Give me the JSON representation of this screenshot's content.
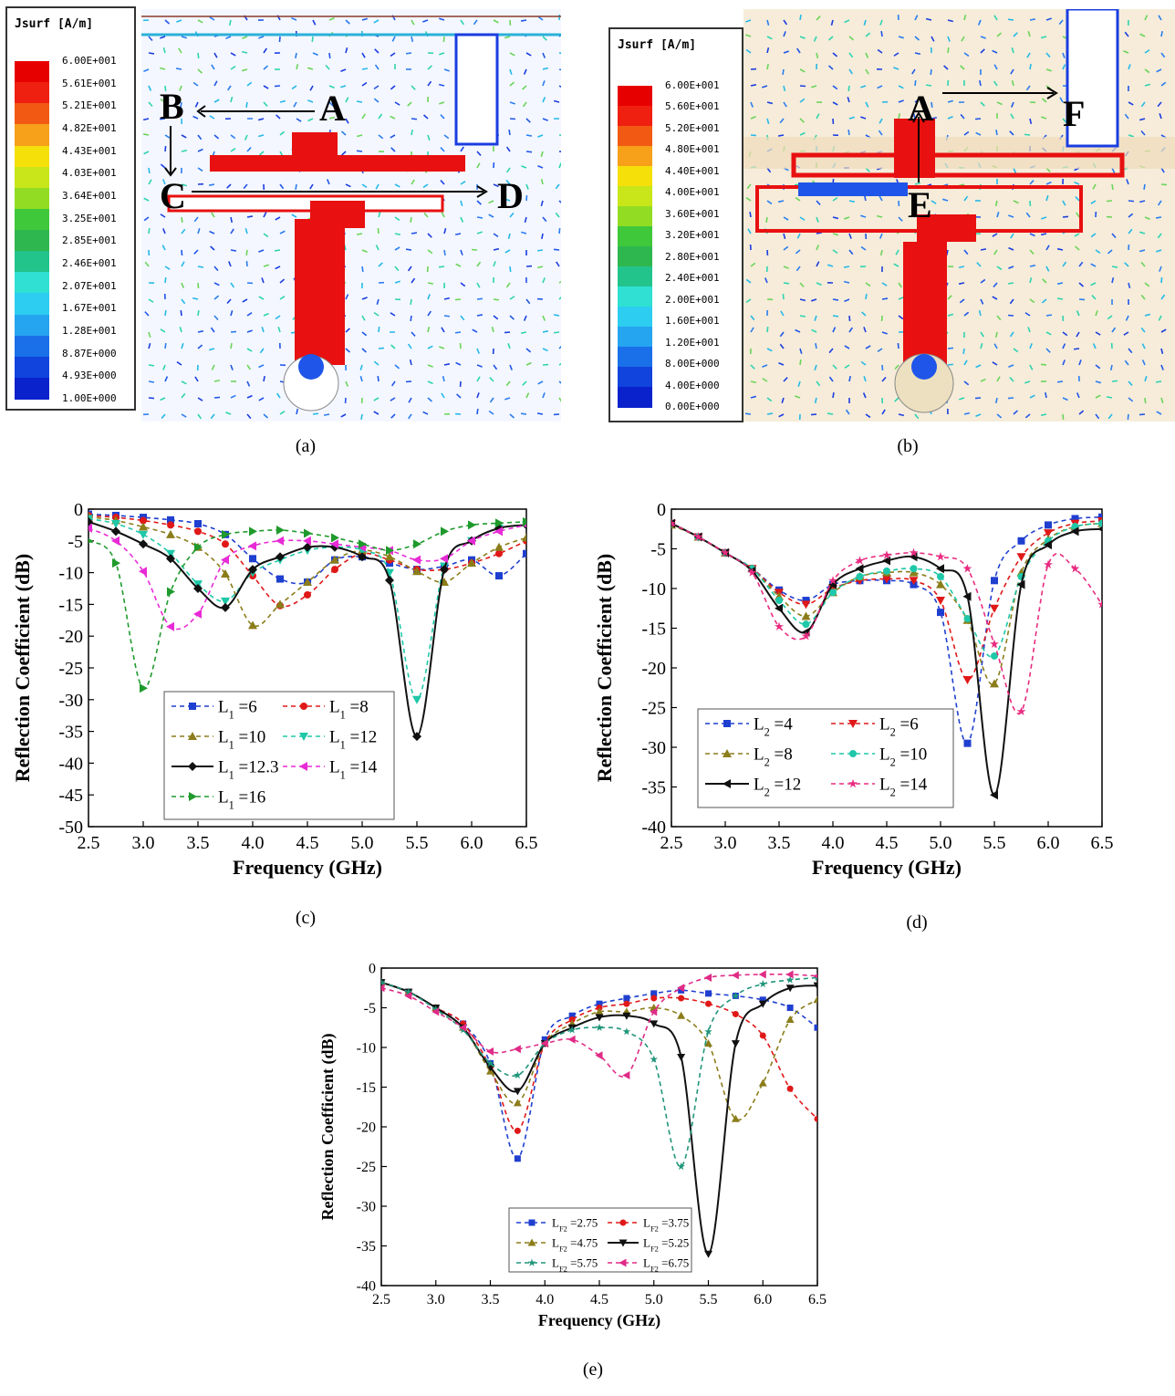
{
  "captions": {
    "a": "(a)",
    "b": "(b)",
    "c": "(c)",
    "d": "(d)",
    "e": "(e)"
  },
  "sim_a": {
    "legend_title": "Jsurf [A/m]",
    "legend_values": [
      "6.00E+001",
      "5.61E+001",
      "5.21E+001",
      "4.82E+001",
      "4.43E+001",
      "4.03E+001",
      "3.64E+001",
      "3.25E+001",
      "2.85E+001",
      "2.46E+001",
      "2.07E+001",
      "1.67E+001",
      "1.28E+001",
      "8.87E+000",
      "4.93E+000",
      "1.00E+000"
    ],
    "point_labels": [
      "A",
      "B",
      "C",
      "D"
    ]
  },
  "sim_b": {
    "legend_title": "Jsurf [A/m]",
    "legend_values": [
      "6.00E+001",
      "5.60E+001",
      "5.20E+001",
      "4.80E+001",
      "4.40E+001",
      "4.00E+001",
      "3.60E+001",
      "3.20E+001",
      "2.80E+001",
      "2.40E+001",
      "2.00E+001",
      "1.60E+001",
      "1.20E+001",
      "8.00E+000",
      "4.00E+000",
      "0.00E+000"
    ],
    "point_labels": [
      "A",
      "E",
      "F"
    ]
  },
  "colorscale": [
    "#e60000",
    "#f02010",
    "#f25a14",
    "#f7a01a",
    "#f5e00a",
    "#c8e619",
    "#92dc24",
    "#3ec83a",
    "#2fb74f",
    "#22c48c",
    "#2fe0d3",
    "#2ccdf0",
    "#25a4f0",
    "#1a70e8",
    "#1144dd",
    "#0a22cc"
  ],
  "chart_data": [
    {
      "type": "line",
      "id": "c",
      "xlabel": "Frequency (GHz)",
      "ylabel": "Reflection Coefficient (dB)",
      "xlim": [
        2.5,
        6.5
      ],
      "ylim": [
        -50,
        0
      ],
      "xticks": [
        "2.5",
        "3.0",
        "3.5",
        "4.0",
        "4.5",
        "5.0",
        "5.5",
        "6.0",
        "6.5"
      ],
      "yticks": [
        "0",
        "-5",
        "-10",
        "-15",
        "-20",
        "-25",
        "-30",
        "-35",
        "-40",
        "-45",
        "-50"
      ],
      "legend_placement": "bottom-center",
      "x": [
        2.5,
        2.75,
        3.0,
        3.25,
        3.5,
        3.75,
        4.0,
        4.25,
        4.5,
        4.75,
        5.0,
        5.25,
        5.5,
        5.75,
        6.0,
        6.25,
        6.5
      ],
      "series": [
        {
          "name_main": "L",
          "name_sub": "1",
          "name_val": "=6",
          "color": "#1f3fd0",
          "dash": "5,4",
          "marker": "square",
          "values": [
            -0.8,
            -1.0,
            -1.3,
            -1.7,
            -2.3,
            -4.0,
            -7.8,
            -11.0,
            -11.5,
            -8.0,
            -7.5,
            -8.5,
            -9.5,
            -9.0,
            -8.0,
            -10.5,
            -7.0
          ]
        },
        {
          "name_main": "L",
          "name_sub": "1",
          "name_val": "=8",
          "color": "#e01818",
          "dash": "5,4",
          "marker": "circle",
          "values": [
            -1.0,
            -1.3,
            -1.8,
            -2.5,
            -3.5,
            -5.5,
            -10.5,
            -15.2,
            -13.5,
            -9.5,
            -7.0,
            -8.0,
            -9.5,
            -9.5,
            -8.5,
            -7.0,
            -5.0
          ]
        },
        {
          "name_main": "L",
          "name_sub": "1",
          "name_val": "=10",
          "color": "#8b7d1a",
          "dash": "5,4",
          "marker": "triangle",
          "values": [
            -1.2,
            -1.8,
            -2.8,
            -4.0,
            -6.0,
            -10.2,
            -18.3,
            -15.0,
            -11.5,
            -8.0,
            -6.5,
            -7.5,
            -9.8,
            -11.5,
            -8.5,
            -6.0,
            -4.5
          ]
        },
        {
          "name_main": "L",
          "name_sub": "1",
          "name_val": "=12",
          "color": "#1ec8a8",
          "dash": "5,4",
          "marker": "triangle-down",
          "values": [
            -1.5,
            -2.3,
            -4.0,
            -7.0,
            -11.8,
            -14.5,
            -10.0,
            -8.0,
            -6.5,
            -6.0,
            -6.5,
            -10.0,
            -30.0,
            -9.0,
            -5.0,
            -3.0,
            -2.5
          ]
        },
        {
          "name_main": "L",
          "name_sub": "1",
          "name_val": "=12.3",
          "color": "#111111",
          "dash": "",
          "marker": "diamond",
          "values": [
            -2.0,
            -3.5,
            -5.5,
            -7.8,
            -12.5,
            -15.5,
            -9.5,
            -7.5,
            -6.0,
            -6.0,
            -7.5,
            -11.2,
            -35.8,
            -9.5,
            -5.0,
            -3.0,
            -2.5
          ]
        },
        {
          "name_main": "L",
          "name_sub": "1",
          "name_val": "=14",
          "color": "#e82bd6",
          "dash": "5,4",
          "marker": "triangle-left",
          "values": [
            -3.0,
            -5.0,
            -9.8,
            -18.5,
            -16.5,
            -8.0,
            -5.8,
            -5.0,
            -5.0,
            -5.5,
            -6.0,
            -6.5,
            -8.0,
            -7.8,
            -5.0,
            -3.5,
            -2.5
          ]
        },
        {
          "name_main": "L",
          "name_sub": "1",
          "name_val": "=16",
          "color": "#1f9a2c",
          "dash": "5,4",
          "marker": "triangle-right",
          "values": [
            -5.0,
            -8.5,
            -28.2,
            -13.0,
            -6.0,
            -4.0,
            -3.5,
            -3.3,
            -3.8,
            -4.5,
            -5.5,
            -6.5,
            -5.5,
            -3.5,
            -2.5,
            -2.2,
            -2.0
          ]
        }
      ]
    },
    {
      "type": "line",
      "id": "d",
      "xlabel": "Frequency (GHz)",
      "ylabel": "Reflection Coefficient (dB)",
      "xlim": [
        2.5,
        6.5
      ],
      "ylim": [
        -40,
        0
      ],
      "xticks": [
        "2.5",
        "3.0",
        "3.5",
        "4.0",
        "4.5",
        "5.0",
        "5.5",
        "6.0",
        "6.5"
      ],
      "yticks": [
        "0",
        "-5",
        "-10",
        "-15",
        "-20",
        "-25",
        "-30",
        "-35",
        "-40"
      ],
      "legend_placement": "bottom-center",
      "x": [
        2.5,
        2.75,
        3.0,
        3.25,
        3.5,
        3.75,
        4.0,
        4.25,
        4.5,
        4.75,
        5.0,
        5.25,
        5.5,
        5.75,
        6.0,
        6.25,
        6.5
      ],
      "series": [
        {
          "name_main": "L",
          "name_sub": "2",
          "name_val": "=4",
          "color": "#1f3fd0",
          "dash": "5,4",
          "marker": "square",
          "values": [
            -1.8,
            -3.5,
            -5.5,
            -7.5,
            -10.2,
            -11.5,
            -9.5,
            -9.0,
            -9.0,
            -9.5,
            -13.0,
            -29.5,
            -9.0,
            -4.0,
            -2.0,
            -1.2,
            -1.0
          ]
        },
        {
          "name_main": "L",
          "name_sub": "2",
          "name_val": "=6",
          "color": "#e01818",
          "dash": "5,4",
          "marker": "triangle-down",
          "values": [
            -1.8,
            -3.5,
            -5.5,
            -7.5,
            -10.5,
            -12.0,
            -10.0,
            -9.0,
            -8.8,
            -9.0,
            -11.5,
            -21.5,
            -12.5,
            -6.0,
            -3.0,
            -1.8,
            -1.5
          ]
        },
        {
          "name_main": "L",
          "name_sub": "2",
          "name_val": "=8",
          "color": "#8b7d1a",
          "dash": "5,4",
          "marker": "triangle",
          "values": [
            -2.0,
            -3.5,
            -5.5,
            -7.5,
            -11.0,
            -13.5,
            -10.5,
            -8.5,
            -8.0,
            -8.0,
            -9.5,
            -14.0,
            -22.0,
            -8.0,
            -3.8,
            -2.2,
            -1.8
          ]
        },
        {
          "name_main": "L",
          "name_sub": "2",
          "name_val": "=10",
          "color": "#1ec8a8",
          "dash": "5,4",
          "marker": "circle",
          "values": [
            -1.8,
            -3.5,
            -5.5,
            -7.5,
            -11.5,
            -14.5,
            -10.5,
            -8.5,
            -7.8,
            -7.5,
            -8.5,
            -13.8,
            -18.5,
            -8.5,
            -4.0,
            -2.2,
            -1.8
          ]
        },
        {
          "name_main": "L",
          "name_sub": "2",
          "name_val": "=12",
          "color": "#111111",
          "dash": "",
          "marker": "triangle-left",
          "values": [
            -1.8,
            -3.5,
            -5.5,
            -7.8,
            -12.5,
            -15.5,
            -9.5,
            -7.5,
            -6.5,
            -6.0,
            -7.5,
            -11.0,
            -36.0,
            -9.5,
            -4.5,
            -2.8,
            -2.5
          ]
        },
        {
          "name_main": "L",
          "name_sub": "2",
          "name_val": "=14",
          "color": "#e82b80",
          "dash": "5,4",
          "marker": "star",
          "values": [
            -1.8,
            -3.5,
            -5.5,
            -8.0,
            -14.8,
            -16.0,
            -9.0,
            -6.5,
            -5.8,
            -5.5,
            -6.0,
            -7.5,
            -17.0,
            -25.5,
            -7.0,
            -7.5,
            -12.0
          ]
        }
      ]
    },
    {
      "type": "line",
      "id": "e",
      "xlabel": "Frequency (GHz)",
      "ylabel": "Reflection Coefficient (dB)",
      "xlim": [
        2.5,
        6.5
      ],
      "ylim": [
        -40,
        0
      ],
      "xticks": [
        "2.5",
        "3.0",
        "3.5",
        "4.0",
        "4.5",
        "5.0",
        "5.5",
        "6.0",
        "6.5"
      ],
      "yticks": [
        "0",
        "-5",
        "-10",
        "-15",
        "-20",
        "-25",
        "-30",
        "-35",
        "-40"
      ],
      "legend_placement": "bottom-center",
      "x": [
        2.5,
        2.75,
        3.0,
        3.25,
        3.5,
        3.75,
        4.0,
        4.25,
        4.5,
        4.75,
        5.0,
        5.25,
        5.5,
        5.75,
        6.0,
        6.25,
        6.5
      ],
      "series": [
        {
          "name_main": "L",
          "name_sub": "F2",
          "name_val": "=2.75",
          "color": "#1f3fd0",
          "dash": "5,4",
          "marker": "square",
          "values": [
            -1.8,
            -3.0,
            -5.0,
            -7.0,
            -12.0,
            -24.0,
            -9.0,
            -6.0,
            -4.5,
            -3.8,
            -3.2,
            -2.8,
            -3.2,
            -3.5,
            -4.0,
            -5.0,
            -7.5
          ]
        },
        {
          "name_main": "L",
          "name_sub": "F2",
          "name_val": "=3.75",
          "color": "#e01818",
          "dash": "5,4",
          "marker": "circle",
          "values": [
            -1.8,
            -3.0,
            -5.0,
            -7.0,
            -12.5,
            -20.5,
            -9.5,
            -6.5,
            -5.0,
            -4.5,
            -3.8,
            -3.8,
            -4.5,
            -5.8,
            -8.5,
            -15.2,
            -19.0
          ]
        },
        {
          "name_main": "L",
          "name_sub": "F2",
          "name_val": "=4.75",
          "color": "#8b7d1a",
          "dash": "5,4",
          "marker": "triangle",
          "values": [
            -1.8,
            -3.0,
            -5.0,
            -7.5,
            -13.0,
            -17.0,
            -9.5,
            -7.0,
            -5.5,
            -5.5,
            -5.0,
            -6.0,
            -9.5,
            -19.0,
            -14.5,
            -6.5,
            -4.0
          ]
        },
        {
          "name_main": "L",
          "name_sub": "F2",
          "name_val": "=5.25",
          "color": "#111111",
          "dash": "",
          "marker": "triangle-down",
          "values": [
            -1.8,
            -3.0,
            -5.0,
            -7.5,
            -12.5,
            -15.5,
            -9.5,
            -7.5,
            -6.2,
            -6.0,
            -7.0,
            -11.2,
            -36.0,
            -9.5,
            -4.5,
            -2.5,
            -2.2
          ]
        },
        {
          "name_main": "L",
          "name_sub": "F2",
          "name_val": "=5.75",
          "color": "#20957a",
          "dash": "5,4",
          "marker": "star",
          "values": [
            -1.8,
            -3.0,
            -5.2,
            -7.8,
            -12.0,
            -13.5,
            -9.5,
            -7.8,
            -7.5,
            -8.0,
            -11.5,
            -25.0,
            -8.0,
            -3.5,
            -2.0,
            -1.5,
            -1.2
          ]
        },
        {
          "name_main": "L",
          "name_sub": "F2",
          "name_val": "=6.75",
          "color": "#e02b86",
          "dash": "5,4",
          "marker": "triangle-left",
          "values": [
            -2.5,
            -3.5,
            -5.5,
            -7.5,
            -10.5,
            -10.2,
            -9.5,
            -9.0,
            -11.0,
            -13.5,
            -5.5,
            -2.5,
            -1.2,
            -0.9,
            -0.8,
            -0.8,
            -1.0
          ]
        }
      ]
    }
  ]
}
